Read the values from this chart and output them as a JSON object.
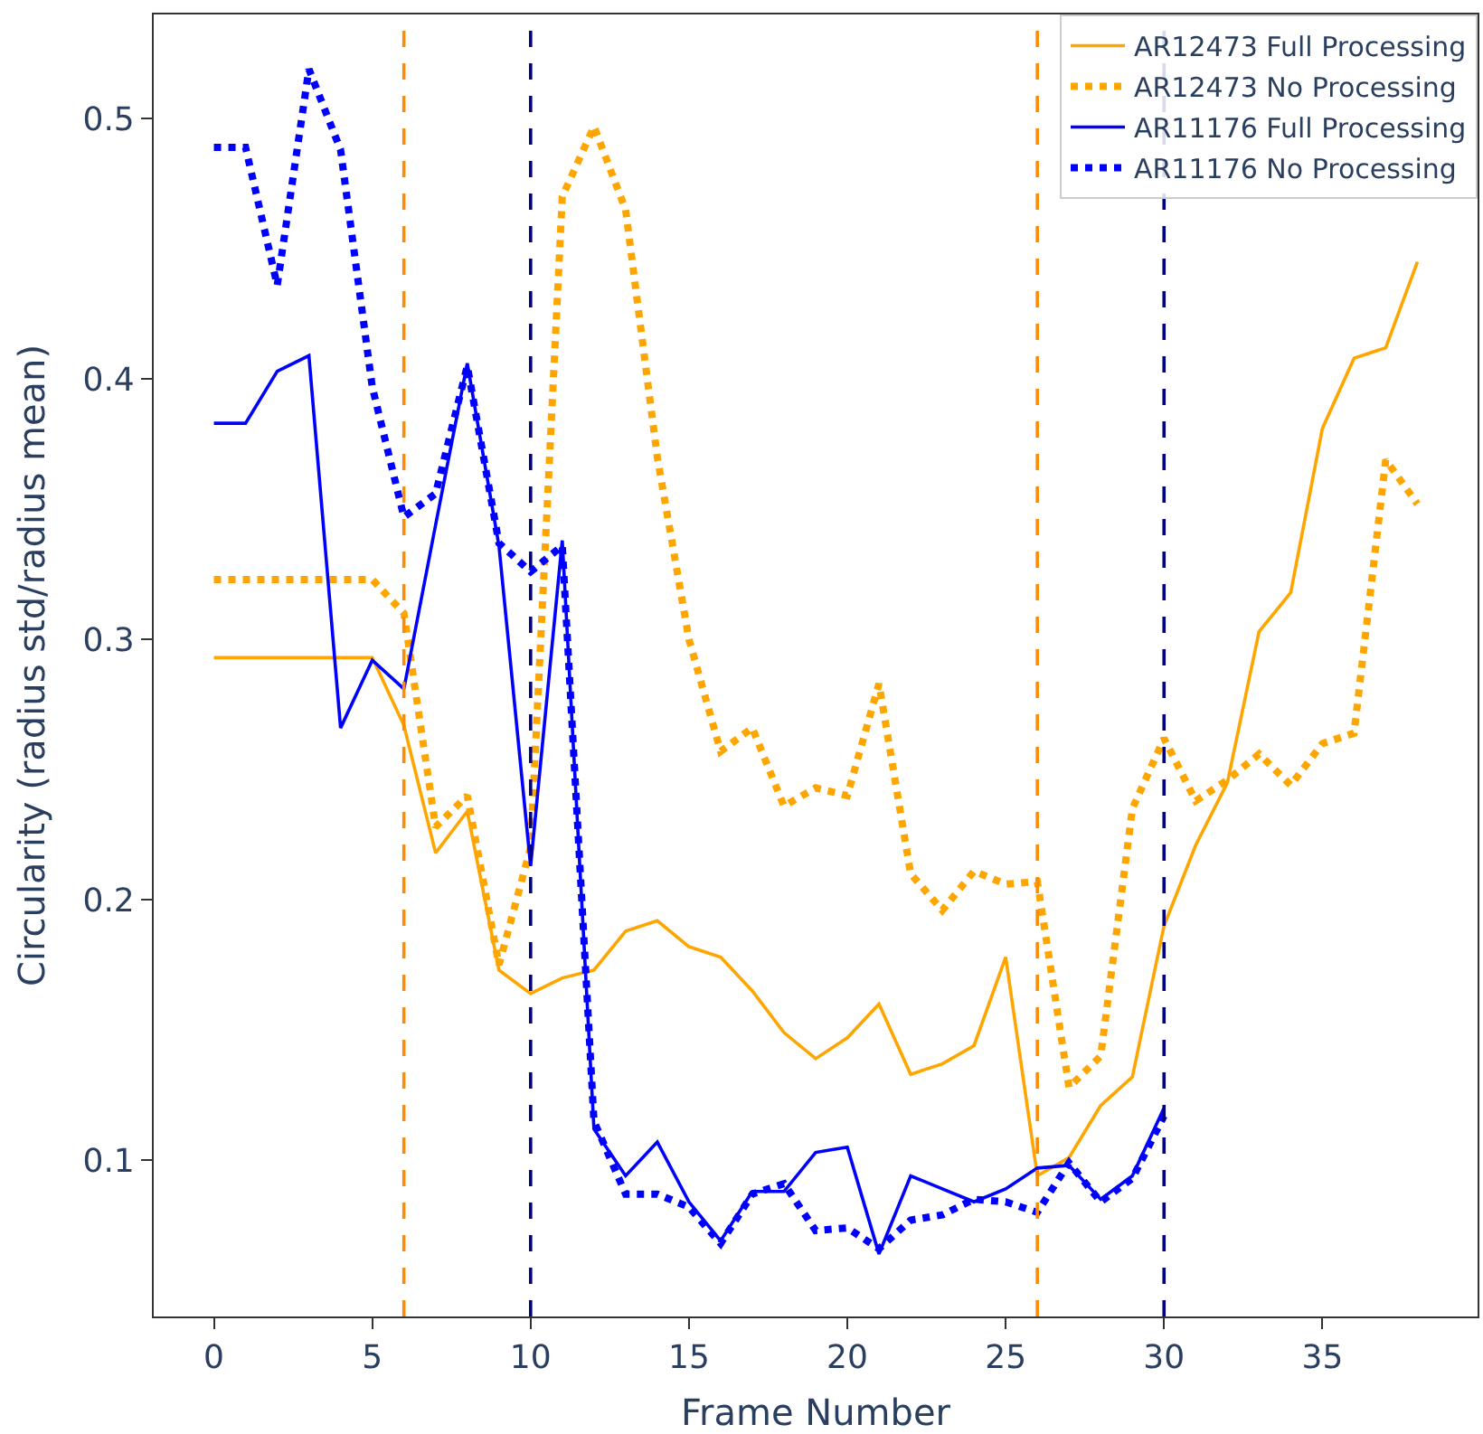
{
  "chart_data": {
    "type": "line",
    "xlabel": "Frame Number",
    "ylabel": "Circularity (radius std/radius mean)",
    "xlim": [
      -1.9,
      39.9
    ],
    "ylim": [
      0.04,
      0.54
    ],
    "xticks": [
      0,
      5,
      10,
      15,
      20,
      25,
      30,
      35
    ],
    "yticks": [
      0.1,
      0.2,
      0.3,
      0.4,
      0.5
    ],
    "legend": "top right",
    "marker": "none",
    "series": [
      {
        "name": "AR12473 Full Processing",
        "color": "#ffa500",
        "line_style": "solid",
        "x": [
          0,
          1,
          2,
          3,
          4,
          5,
          6,
          7,
          8,
          9,
          10,
          11,
          12,
          13,
          14,
          15,
          16,
          17,
          18,
          19,
          20,
          21,
          22,
          23,
          24,
          25,
          26,
          27,
          28,
          29,
          30,
          31,
          32,
          33,
          34,
          35,
          36,
          37,
          38
        ],
        "values": [
          0.293,
          0.293,
          0.293,
          0.293,
          0.293,
          0.293,
          0.267,
          0.218,
          0.234,
          0.173,
          0.164,
          0.17,
          0.173,
          0.188,
          0.192,
          0.182,
          0.178,
          0.165,
          0.149,
          0.139,
          0.147,
          0.16,
          0.133,
          0.137,
          0.144,
          0.178,
          0.094,
          0.101,
          0.121,
          0.132,
          0.19,
          0.221,
          0.245,
          0.303,
          0.318,
          0.381,
          0.408,
          0.412,
          0.445
        ]
      },
      {
        "name": "AR12473 No Processing",
        "color": "#ffa500",
        "line_style": "dotted",
        "x": [
          0,
          1,
          2,
          3,
          4,
          5,
          6,
          7,
          8,
          9,
          10,
          11,
          12,
          13,
          14,
          15,
          16,
          17,
          18,
          19,
          20,
          21,
          22,
          23,
          24,
          25,
          26,
          27,
          28,
          29,
          30,
          31,
          32,
          33,
          34,
          35,
          36,
          37,
          38
        ],
        "values": [
          0.323,
          0.323,
          0.323,
          0.323,
          0.323,
          0.323,
          0.31,
          0.228,
          0.24,
          0.175,
          0.22,
          0.47,
          0.497,
          0.465,
          0.37,
          0.3,
          0.257,
          0.266,
          0.236,
          0.243,
          0.24,
          0.283,
          0.21,
          0.196,
          0.211,
          0.206,
          0.207,
          0.128,
          0.14,
          0.235,
          0.262,
          0.238,
          0.246,
          0.256,
          0.244,
          0.26,
          0.264,
          0.369,
          0.352
        ]
      },
      {
        "name": "AR11176 Full Processing",
        "color": "#0000ff",
        "line_style": "solid",
        "x": [
          0,
          1,
          2,
          3,
          4,
          5,
          6,
          7,
          8,
          9,
          10,
          11,
          12,
          13,
          14,
          15,
          16,
          17,
          18,
          19,
          20,
          21,
          22,
          23,
          24,
          25,
          26,
          27,
          28,
          29,
          30
        ],
        "values": [
          0.383,
          0.383,
          0.403,
          0.409,
          0.266,
          0.292,
          0.281,
          0.344,
          0.406,
          0.336,
          0.213,
          0.338,
          0.112,
          0.094,
          0.107,
          0.084,
          0.069,
          0.088,
          0.088,
          0.103,
          0.105,
          0.064,
          0.094,
          0.089,
          0.084,
          0.089,
          0.097,
          0.098,
          0.085,
          0.094,
          0.12
        ]
      },
      {
        "name": "AR11176 No Processing",
        "color": "#0000ff",
        "line_style": "dotted",
        "x": [
          0,
          1,
          2,
          3,
          4,
          5,
          6,
          7,
          8,
          9,
          10,
          11,
          12,
          13,
          14,
          15,
          16,
          17,
          18,
          19,
          20,
          21,
          22,
          23,
          24,
          25,
          26,
          27,
          28,
          29,
          30
        ],
        "values": [
          0.489,
          0.489,
          0.436,
          0.519,
          0.488,
          0.397,
          0.347,
          0.356,
          0.405,
          0.337,
          0.326,
          0.336,
          0.115,
          0.087,
          0.087,
          0.082,
          0.068,
          0.087,
          0.091,
          0.073,
          0.074,
          0.066,
          0.077,
          0.079,
          0.085,
          0.084,
          0.08,
          0.099,
          0.084,
          0.093,
          0.117
        ]
      }
    ],
    "ref_lines": [
      {
        "axis": "x",
        "value": 6,
        "color": "#ff8c00",
        "line_style": "dashed"
      },
      {
        "axis": "x",
        "value": 10,
        "color": "#000080",
        "line_style": "dashed"
      },
      {
        "axis": "x",
        "value": 26,
        "color": "#ff8c00",
        "line_style": "dashed"
      },
      {
        "axis": "x",
        "value": 30,
        "color": "#000080",
        "line_style": "dashed"
      }
    ]
  }
}
